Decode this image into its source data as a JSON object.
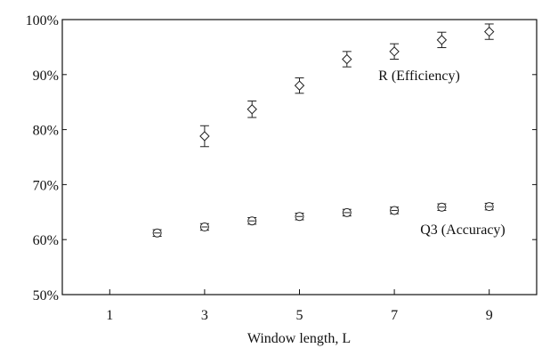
{
  "chart_data": {
    "type": "scatter",
    "title": "",
    "xlabel": "Window length, L",
    "ylabel": "",
    "xlim": [
      0,
      10
    ],
    "ylim": [
      50,
      100
    ],
    "x_ticks": [
      1,
      3,
      5,
      7,
      9
    ],
    "x_tick_labels": [
      "1",
      "3",
      "5",
      "7",
      "9"
    ],
    "y_ticks": [
      50,
      60,
      70,
      80,
      90,
      100
    ],
    "y_tick_labels": [
      "50%",
      "60%",
      "70%",
      "80%",
      "90%",
      "100%"
    ],
    "grid": false,
    "series": [
      {
        "name": "R (Efficiency)",
        "marker": "diamond",
        "x": [
          3,
          4,
          5,
          6,
          7,
          8,
          9
        ],
        "y": [
          78.8,
          83.7,
          88.0,
          92.8,
          94.2,
          96.3,
          97.8
        ],
        "error": [
          1.9,
          1.5,
          1.4,
          1.4,
          1.4,
          1.4,
          1.4
        ]
      },
      {
        "name": "Q3 (Accuracy)",
        "marker": "circle-dash",
        "x": [
          2,
          3,
          4,
          5,
          6,
          7,
          8,
          9
        ],
        "y": [
          61.2,
          62.3,
          63.4,
          64.2,
          64.9,
          65.3,
          65.9,
          66.0
        ],
        "error": [
          0.6,
          0.6,
          0.6,
          0.6,
          0.6,
          0.6,
          0.6,
          0.6
        ]
      }
    ],
    "colors": {
      "marks": "#222222",
      "axes": "#111111",
      "background": "#ffffff"
    }
  }
}
